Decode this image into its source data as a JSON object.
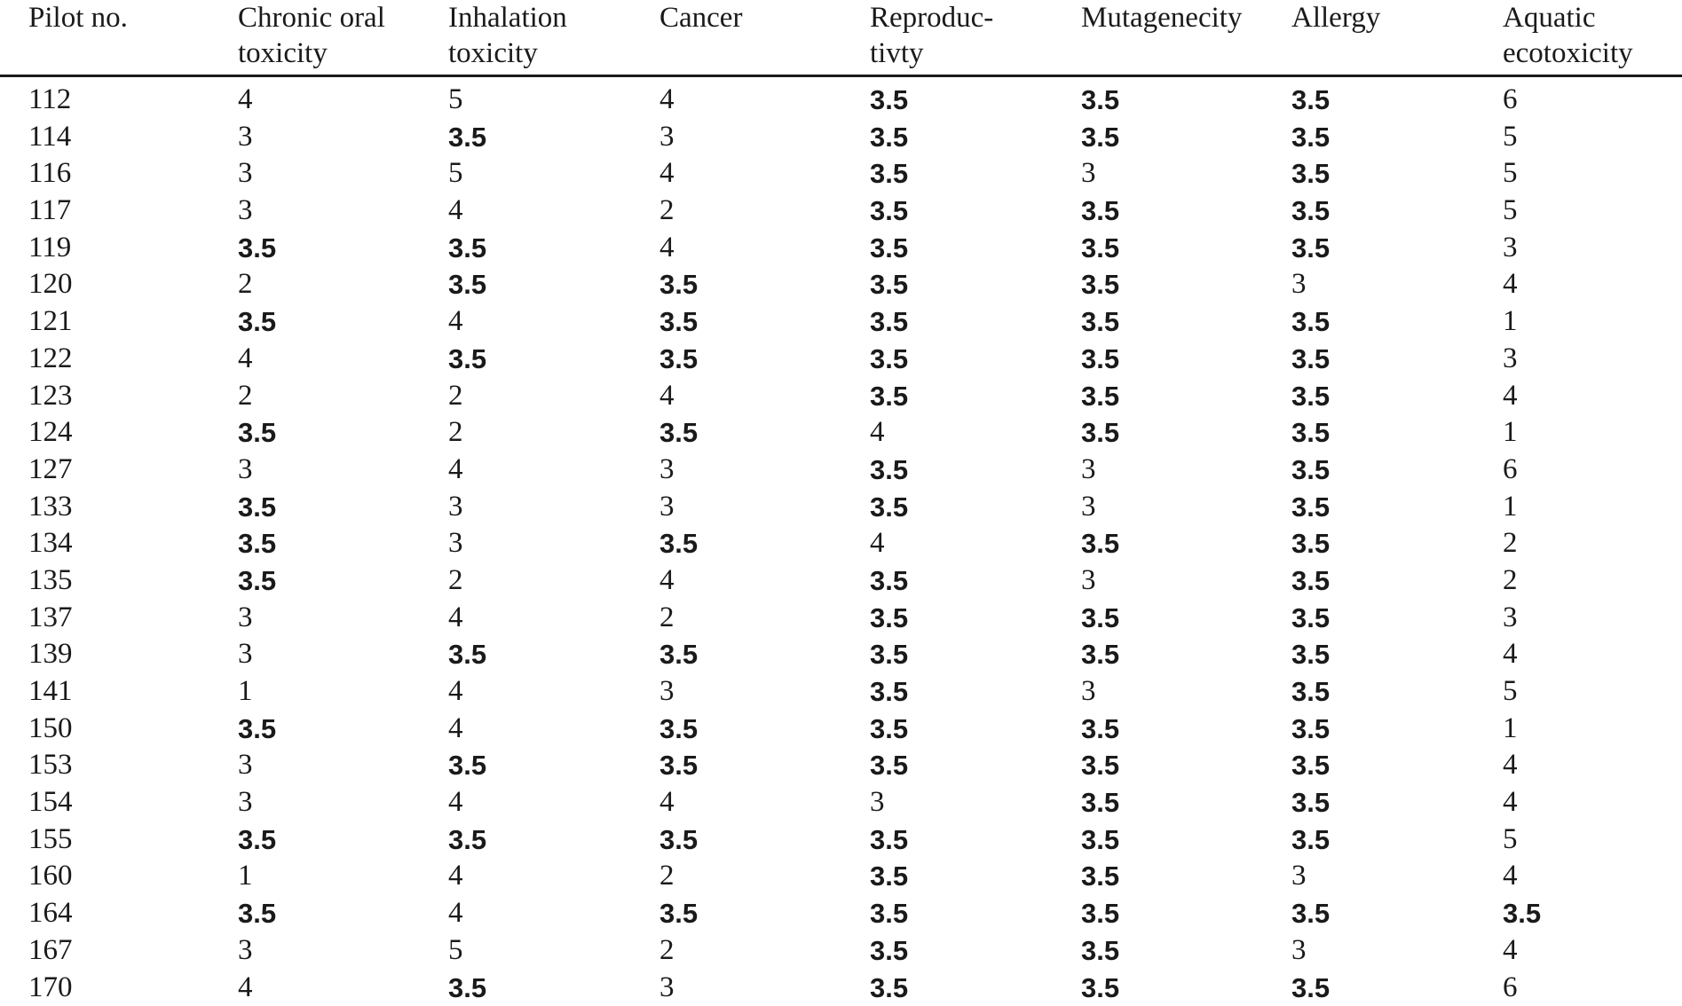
{
  "table": {
    "headers": [
      "Pilot no.",
      "Chronic oral\ntoxicity",
      "Inhalation\ntoxicity",
      "Cancer",
      "Reproduc-\ntivty",
      "Mutagenecity",
      "Allergy",
      "Aquatic\necotoxicity"
    ],
    "rows": [
      [
        "112",
        "4",
        "5",
        "4",
        "3.5",
        "3.5",
        "3.5",
        "6"
      ],
      [
        "114",
        "3",
        "3.5",
        "3",
        "3.5",
        "3.5",
        "3.5",
        "5"
      ],
      [
        "116",
        "3",
        "5",
        "4",
        "3.5",
        "3",
        "3.5",
        "5"
      ],
      [
        "117",
        "3",
        "4",
        "2",
        "3.5",
        "3.5",
        "3.5",
        "5"
      ],
      [
        "119",
        "3.5",
        "3.5",
        "4",
        "3.5",
        "3.5",
        "3.5",
        "3"
      ],
      [
        "120",
        "2",
        "3.5",
        "3.5",
        "3.5",
        "3.5",
        "3",
        "4"
      ],
      [
        "121",
        "3.5",
        "4",
        "3.5",
        "3.5",
        "3.5",
        "3.5",
        "1"
      ],
      [
        "122",
        "4",
        "3.5",
        "3.5",
        "3.5",
        "3.5",
        "3.5",
        "3"
      ],
      [
        "123",
        "2",
        "2",
        "4",
        "3.5",
        "3.5",
        "3.5",
        "4"
      ],
      [
        "124",
        "3.5",
        "2",
        "3.5",
        "4",
        "3.5",
        "3.5",
        "1"
      ],
      [
        "127",
        "3",
        "4",
        "3",
        "3.5",
        "3",
        "3.5",
        "6"
      ],
      [
        "133",
        "3.5",
        "3",
        "3",
        "3.5",
        "3",
        "3.5",
        "1"
      ],
      [
        "134",
        "3.5",
        "3",
        "3.5",
        "4",
        "3.5",
        "3.5",
        "2"
      ],
      [
        "135",
        "3.5",
        "2",
        "4",
        "3.5",
        "3",
        "3.5",
        "2"
      ],
      [
        "137",
        "3",
        "4",
        "2",
        "3.5",
        "3.5",
        "3.5",
        "3"
      ],
      [
        "139",
        "3",
        "3.5",
        "3.5",
        "3.5",
        "3.5",
        "3.5",
        "4"
      ],
      [
        "141",
        "1",
        "4",
        "3",
        "3.5",
        "3",
        "3.5",
        "5"
      ],
      [
        "150",
        "3.5",
        "4",
        "3.5",
        "3.5",
        "3.5",
        "3.5",
        "1"
      ],
      [
        "153",
        "3",
        "3.5",
        "3.5",
        "3.5",
        "3.5",
        "3.5",
        "4"
      ],
      [
        "154",
        "3",
        "4",
        "4",
        "3",
        "3.5",
        "3.5",
        "4"
      ],
      [
        "155",
        "3.5",
        "3.5",
        "3.5",
        "3.5",
        "3.5",
        "3.5",
        "5"
      ],
      [
        "160",
        "1",
        "4",
        "2",
        "3.5",
        "3.5",
        "3",
        "4"
      ],
      [
        "164",
        "3.5",
        "4",
        "3.5",
        "3.5",
        "3.5",
        "3.5",
        "3.5"
      ],
      [
        "167",
        "3",
        "5",
        "2",
        "3.5",
        "3.5",
        "3",
        "4"
      ],
      [
        "170",
        "4",
        "3.5",
        "3",
        "3.5",
        "3.5",
        "3.5",
        "6"
      ]
    ]
  }
}
